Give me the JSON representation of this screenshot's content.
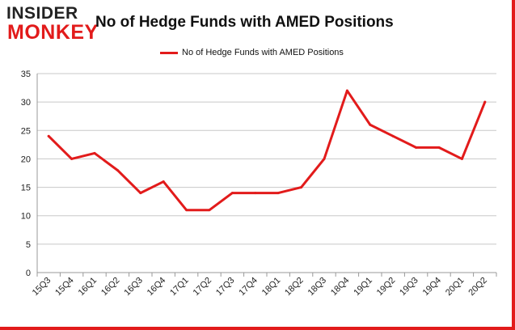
{
  "logo": {
    "line1": "INSIDER",
    "line2": "MONKEY"
  },
  "chart_data": {
    "type": "line",
    "title": "No of Hedge Funds with AMED Positions",
    "xlabel": "",
    "ylabel": "",
    "categories": [
      "15Q3",
      "15Q4",
      "16Q1",
      "16Q2",
      "16Q3",
      "16Q4",
      "17Q1",
      "17Q2",
      "17Q3",
      "17Q4",
      "18Q1",
      "18Q2",
      "18Q3",
      "18Q4",
      "19Q1",
      "19Q2",
      "19Q3",
      "19Q4",
      "20Q1",
      "20Q2"
    ],
    "series": [
      {
        "name": "No of Hedge Funds with AMED Positions",
        "values": [
          24,
          20,
          21,
          18,
          14,
          16,
          11,
          11,
          14,
          14,
          14,
          15,
          20,
          32,
          26,
          24,
          22,
          22,
          20,
          30
        ]
      }
    ],
    "ylim": [
      0,
      35
    ],
    "yticks": [
      0,
      5,
      10,
      15,
      20,
      25,
      30,
      35
    ],
    "grid": true,
    "legend_position": "top-center",
    "line_color": "#e21b1b"
  }
}
